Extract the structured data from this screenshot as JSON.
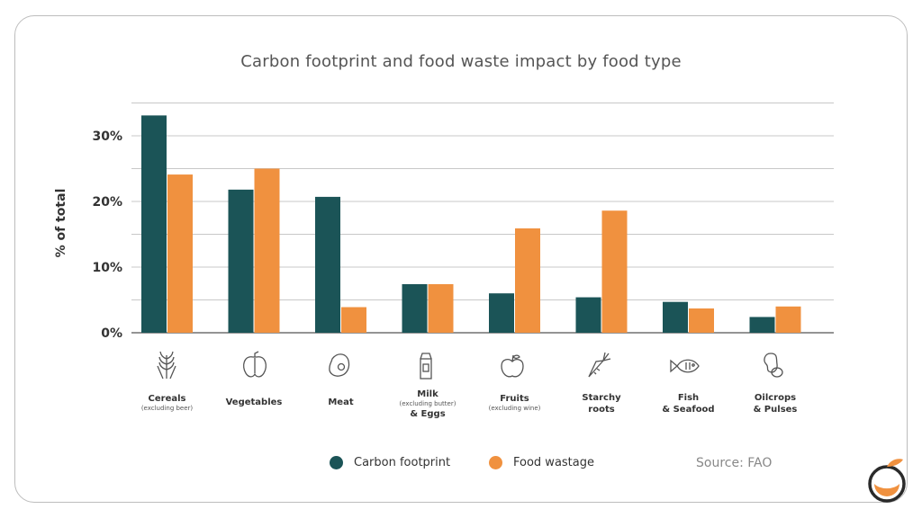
{
  "title": "Carbon footprint and food waste impact by food type",
  "source": "Source: FAO",
  "colors": {
    "carbon": "#1b5457",
    "waste": "#f0913f",
    "grid": "#c8c8c8",
    "axis": "#555555"
  },
  "categories": [
    {
      "line1": "Cereals",
      "sub": "(excluding beer)",
      "line2": "",
      "icon": "wheat-icon"
    },
    {
      "line1": "Vegetables",
      "sub": "",
      "line2": "",
      "icon": "pepper-icon"
    },
    {
      "line1": "Meat",
      "sub": "",
      "line2": "",
      "icon": "steak-icon"
    },
    {
      "line1": "Milk",
      "sub": "(excluding butter)",
      "line2": "& Eggs",
      "icon": "milk-carton-icon"
    },
    {
      "line1": "Fruits",
      "sub": "(excluding wine)",
      "line2": "",
      "icon": "apple-icon"
    },
    {
      "line1": "Starchy",
      "sub": "",
      "line2": "roots",
      "icon": "carrot-icon"
    },
    {
      "line1": "Fish",
      "sub": "",
      "line2": "& Seafood",
      "icon": "fish-icon"
    },
    {
      "line1": "Oilcrops",
      "sub": "",
      "line2": "& Pulses",
      "icon": "beans-icon"
    }
  ],
  "chart_data": {
    "type": "bar",
    "title": "Carbon footprint and food waste impact by food type",
    "xlabel": "",
    "ylabel": "% of total",
    "categories": [
      "Cereals (excluding beer)",
      "Vegetables",
      "Meat",
      "Milk (excluding butter) & Eggs",
      "Fruits (excluding wine)",
      "Starchy roots",
      "Fish & Seafood",
      "Oilcrops & Pulses"
    ],
    "series": [
      {
        "name": "Carbon footprint",
        "values": [
          33.1,
          21.8,
          20.7,
          7.4,
          6.0,
          5.4,
          4.7,
          2.4
        ]
      },
      {
        "name": "Food wastage",
        "values": [
          24.1,
          25.0,
          3.9,
          7.4,
          15.9,
          18.6,
          3.7,
          4.0
        ]
      }
    ],
    "yticks": [
      "0%",
      "10%",
      "20%",
      "30%"
    ],
    "ylim": [
      0,
      35
    ],
    "grid": true,
    "legend": "bottom"
  }
}
